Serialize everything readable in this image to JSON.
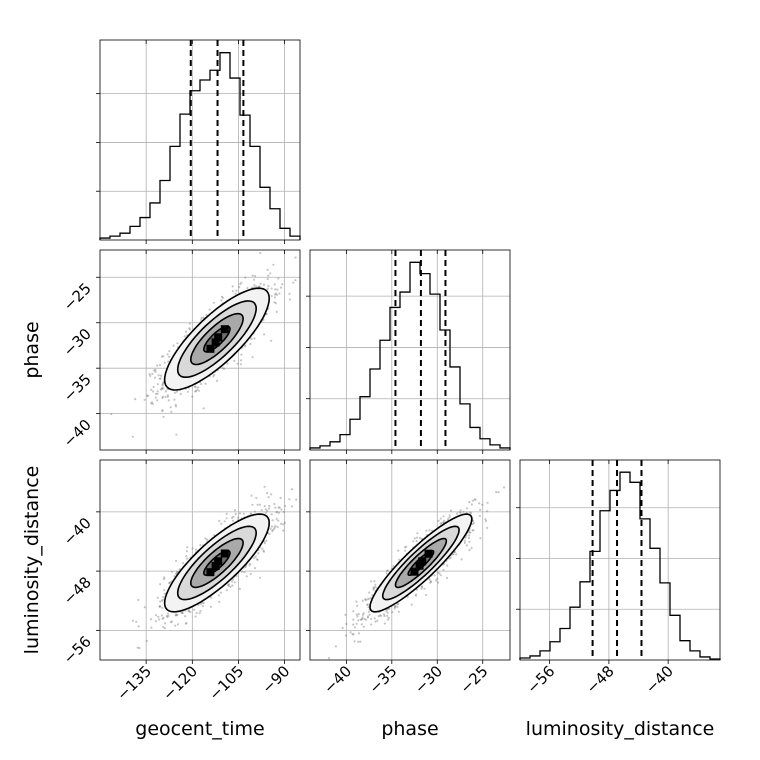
{
  "chart_data": {
    "type": "corner",
    "grid": true,
    "parameters": [
      {
        "name": "geocent_time",
        "label": "geocent_time",
        "range": [
          -150,
          -85
        ],
        "ticks": [
          -135,
          -120,
          -105,
          -90
        ],
        "tick_labels": [
          "−135",
          "−120",
          "−105",
          "−90"
        ],
        "quantiles": [
          -120.5,
          -111.8,
          -103.4
        ],
        "mean": -112,
        "sd": 8.5
      },
      {
        "name": "phase",
        "label": "phase",
        "range": [
          -44,
          -22
        ],
        "ticks": [
          -40,
          -35,
          -30,
          -25
        ],
        "tick_labels": [
          "−40",
          "−35",
          "−30",
          "−25"
        ],
        "quantiles": [
          -34.6,
          -31.8,
          -29.1
        ],
        "mean": -31.8,
        "sd": 2.8
      },
      {
        "name": "luminosity_distance",
        "label": "luminosity_distance",
        "range": [
          -60,
          -33
        ],
        "ticks": [
          -56,
          -48,
          -40
        ],
        "tick_labels": [
          "−56",
          "−48",
          "−40"
        ],
        "quantiles": [
          -50.2,
          -46.9,
          -43.6
        ],
        "mean": -46.9,
        "sd": 3.3
      }
    ],
    "diagonal_hist": [
      {
        "param": "geocent_time",
        "bin_edges": [
          -150,
          -146.75,
          -143.5,
          -140.25,
          -137,
          -133.75,
          -130.5,
          -127.25,
          -124,
          -120.75,
          -117.5,
          -114.25,
          -111,
          -107.75,
          -104.5,
          -101.25,
          -98,
          -94.75,
          -91.5,
          -88.25,
          -85
        ],
        "counts": [
          2,
          4,
          7,
          14,
          23,
          38,
          61,
          96,
          129,
          153,
          164,
          174,
          192,
          166,
          128,
          96,
          54,
          32,
          12,
          4
        ],
        "ymax": 205,
        "yticks": [
          50,
          100,
          150
        ]
      },
      {
        "param": "phase",
        "bin_edges": [
          -44,
          -42.9,
          -41.8,
          -40.7,
          -39.6,
          -38.5,
          -37.4,
          -36.3,
          -35.2,
          -34.1,
          -33,
          -31.9,
          -30.8,
          -29.7,
          -28.6,
          -27.5,
          -26.4,
          -25.3,
          -24.2,
          -23.1,
          -22
        ],
        "counts": [
          2,
          4,
          8,
          15,
          30,
          52,
          79,
          107,
          139,
          154,
          183,
          172,
          152,
          117,
          81,
          45,
          22,
          11,
          5,
          2
        ],
        "ymax": 195,
        "yticks": [
          50,
          100,
          150
        ]
      },
      {
        "param": "luminosity_distance",
        "bin_edges": [
          -60,
          -58.65,
          -57.3,
          -55.95,
          -54.6,
          -53.25,
          -51.9,
          -50.55,
          -49.2,
          -47.85,
          -46.5,
          -45.15,
          -43.8,
          -42.45,
          -41.1,
          -39.75,
          -38.4,
          -37.05,
          -35.7,
          -34.35,
          -33
        ],
        "counts": [
          2,
          4,
          9,
          18,
          31,
          52,
          77,
          107,
          147,
          167,
          185,
          175,
          139,
          110,
          76,
          44,
          19,
          9,
          3,
          1
        ],
        "ymax": 197,
        "yticks": [
          50,
          100,
          150
        ]
      }
    ],
    "scatter_pairs": [
      {
        "x": "geocent_time",
        "y": "phase",
        "correlation": 0.8
      },
      {
        "x": "geocent_time",
        "y": "luminosity_distance",
        "correlation": 0.82
      },
      {
        "x": "phase",
        "y": "luminosity_distance",
        "correlation": 0.9
      }
    ],
    "contour_levels_sigma": [
      0.5,
      1.0,
      1.5,
      2.0
    ],
    "colors": {
      "line": "#000000",
      "points": "#7f7f7f",
      "grid": "#b0b0b0"
    }
  }
}
